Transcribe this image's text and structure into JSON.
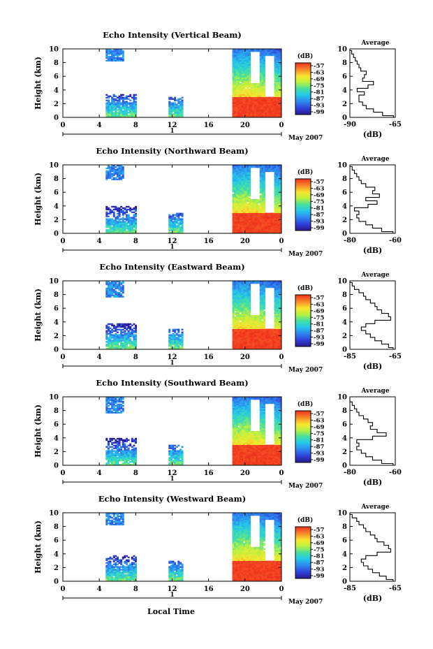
{
  "figure": {
    "xlabel": "Local Time",
    "date_label": "May 2007",
    "x_ticks": [
      "0",
      "4",
      "8",
      "12",
      "16",
      "20",
      "0"
    ],
    "day_marker": "1",
    "y_label": "Height (km)",
    "y_ticks": [
      "0",
      "2",
      "4",
      "6",
      "8",
      "10"
    ],
    "colorbar_unit": "(dB)",
    "colorbar_ticks": [
      "-57",
      "-63",
      "-69",
      "-75",
      "-81",
      "-87",
      "-93",
      "-99"
    ],
    "avg_title": "Average",
    "avg_xlabel": "(dB)"
  },
  "chart_data": [
    {
      "type": "heatmap",
      "title": "Echo Intensity (Vertical Beam)",
      "xlabel": "Local Time",
      "ylabel": "Height (km)",
      "xlim": [
        0,
        24
      ],
      "ylim": [
        0,
        10
      ],
      "colorbar": {
        "label": "(dB)",
        "range": [
          -99,
          -57
        ]
      },
      "segments": [
        {
          "t_start": 4.7,
          "t_end": 8.0,
          "low_top_km": 3.3,
          "high_km": [
            8.2,
            10.0
          ]
        },
        {
          "t_start": 11.6,
          "t_end": 13.2,
          "low_top_km": 3.0,
          "high_km": []
        },
        {
          "t_start": 18.6,
          "t_end": 24.0,
          "low_top_km": 10.0,
          "high_km": []
        }
      ],
      "average_profile": {
        "title": "Average",
        "xlabel": "(dB)",
        "xlim": [
          -90,
          -65
        ],
        "xticks": [
          -90,
          -65
        ],
        "height_km": [
          0,
          0.5,
          1,
          1.5,
          2,
          2.5,
          3,
          3.5,
          4,
          4.5,
          5,
          5.5,
          6,
          6.5,
          7,
          7.5,
          8,
          8.5,
          9,
          9.5,
          10
        ],
        "values_db": [
          -66,
          -72,
          -77,
          -81,
          -83,
          -85,
          -85,
          -82,
          -86,
          -80,
          -77,
          -83,
          -82,
          -81,
          -84,
          -85,
          -86,
          -87,
          -88,
          -89,
          -90
        ]
      }
    },
    {
      "type": "heatmap",
      "title": "Echo Intensity (Northward Beam)",
      "xlabel": "Local Time",
      "ylabel": "Height (km)",
      "xlim": [
        0,
        24
      ],
      "ylim": [
        0,
        10
      ],
      "colorbar": {
        "label": "(dB)",
        "range": [
          -99,
          -57
        ]
      },
      "segments": [
        {
          "t_start": 4.7,
          "t_end": 8.0,
          "low_top_km": 4.0,
          "high_km": [
            7.8,
            10.0
          ]
        },
        {
          "t_start": 11.6,
          "t_end": 13.2,
          "low_top_km": 3.0,
          "high_km": []
        },
        {
          "t_start": 18.6,
          "t_end": 24.0,
          "low_top_km": 10.0,
          "high_km": []
        }
      ],
      "average_profile": {
        "title": "Average",
        "xlabel": "(dB)",
        "xlim": [
          -80,
          -60
        ],
        "xticks": [
          -80,
          -60
        ],
        "height_km": [
          0,
          0.5,
          1,
          1.5,
          2,
          2.5,
          3,
          3.5,
          4,
          4.5,
          5,
          5.5,
          6,
          6.5,
          7,
          7.5,
          8,
          8.5,
          9,
          9.5,
          10
        ],
        "values_db": [
          -61,
          -66,
          -70,
          -73,
          -76,
          -77,
          -76,
          -78,
          -72,
          -68,
          -73,
          -67,
          -70,
          -69,
          -73,
          -75,
          -76,
          -77,
          -78,
          -79,
          -80
        ]
      }
    },
    {
      "type": "heatmap",
      "title": "Echo Intensity (Eastward Beam)",
      "xlabel": "Local Time",
      "ylabel": "Height (km)",
      "xlim": [
        0,
        24
      ],
      "ylim": [
        0,
        10
      ],
      "colorbar": {
        "label": "(dB)",
        "range": [
          -99,
          -57
        ]
      },
      "segments": [
        {
          "t_start": 4.7,
          "t_end": 8.0,
          "low_top_km": 3.7,
          "high_km": [
            7.5,
            10.0
          ]
        },
        {
          "t_start": 11.6,
          "t_end": 13.2,
          "low_top_km": 3.0,
          "high_km": []
        },
        {
          "t_start": 18.6,
          "t_end": 24.0,
          "low_top_km": 10.0,
          "high_km": []
        }
      ],
      "average_profile": {
        "title": "Average",
        "xlabel": "(dB)",
        "xticks": [
          -85,
          -65
        ],
        "xlim": [
          -85,
          -65
        ],
        "height_km": [
          0,
          0.5,
          1,
          1.5,
          2,
          2.5,
          3,
          3.5,
          4,
          4.5,
          5,
          5.5,
          6,
          6.5,
          7,
          7.5,
          8,
          8.5,
          9,
          9.5,
          10
        ],
        "values_db": [
          -66,
          -68,
          -71,
          -74,
          -76,
          -78,
          -80,
          -78,
          -74,
          -67,
          -68,
          -71,
          -73,
          -74,
          -76,
          -78,
          -79,
          -81,
          -83,
          -84,
          -85
        ]
      }
    },
    {
      "type": "heatmap",
      "title": "Echo Intensity (Southward Beam)",
      "xlabel": "Local Time",
      "ylabel": "Height (km)",
      "xlim": [
        0,
        24
      ],
      "ylim": [
        0,
        10
      ],
      "colorbar": {
        "label": "(dB)",
        "range": [
          -99,
          -57
        ]
      },
      "segments": [
        {
          "t_start": 4.7,
          "t_end": 8.0,
          "low_top_km": 4.0,
          "high_km": [
            7.5,
            10.0
          ]
        },
        {
          "t_start": 11.6,
          "t_end": 13.2,
          "low_top_km": 3.0,
          "high_km": []
        },
        {
          "t_start": 18.6,
          "t_end": 24.0,
          "low_top_km": 10.0,
          "high_km": []
        }
      ],
      "average_profile": {
        "title": "Average",
        "xlabel": "(dB)",
        "xlim": [
          -80,
          -60
        ],
        "xticks": [
          -80,
          -60
        ],
        "height_km": [
          0,
          0.5,
          1,
          1.5,
          2,
          2.5,
          3,
          3.5,
          4,
          4.5,
          5,
          5.5,
          6,
          6.5,
          7,
          7.5,
          8,
          8.5,
          9,
          9.5,
          10
        ],
        "values_db": [
          -61,
          -66,
          -70,
          -73,
          -75,
          -77,
          -76,
          -77,
          -70,
          -64,
          -68,
          -71,
          -70,
          -72,
          -74,
          -76,
          -77,
          -78,
          -79,
          -80,
          -80
        ]
      }
    },
    {
      "type": "heatmap",
      "title": "Echo Intensity (Westward Beam)",
      "xlabel": "Local Time",
      "ylabel": "Height (km)",
      "xlim": [
        0,
        24
      ],
      "ylim": [
        0,
        10
      ],
      "colorbar": {
        "label": "(dB)",
        "range": [
          -99,
          -57
        ]
      },
      "segments": [
        {
          "t_start": 4.7,
          "t_end": 8.0,
          "low_top_km": 3.7,
          "high_km": [
            8.2,
            10.0
          ]
        },
        {
          "t_start": 11.6,
          "t_end": 13.2,
          "low_top_km": 3.0,
          "high_km": []
        },
        {
          "t_start": 18.6,
          "t_end": 24.0,
          "low_top_km": 10.0,
          "high_km": []
        }
      ],
      "average_profile": {
        "title": "Average",
        "xlabel": "(dB)",
        "xlim": [
          -85,
          -65
        ],
        "xticks": [
          -85,
          -65
        ],
        "height_km": [
          0,
          0.5,
          1,
          1.5,
          2,
          2.5,
          3,
          3.5,
          4,
          4.5,
          5,
          5.5,
          6,
          6.5,
          7,
          7.5,
          8,
          8.5,
          9,
          9.5,
          10
        ],
        "values_db": [
          -66,
          -69,
          -72,
          -75,
          -77,
          -79,
          -80,
          -78,
          -73,
          -67,
          -68,
          -70,
          -73,
          -74,
          -76,
          -78,
          -79,
          -81,
          -82,
          -84,
          -85
        ]
      }
    }
  ]
}
